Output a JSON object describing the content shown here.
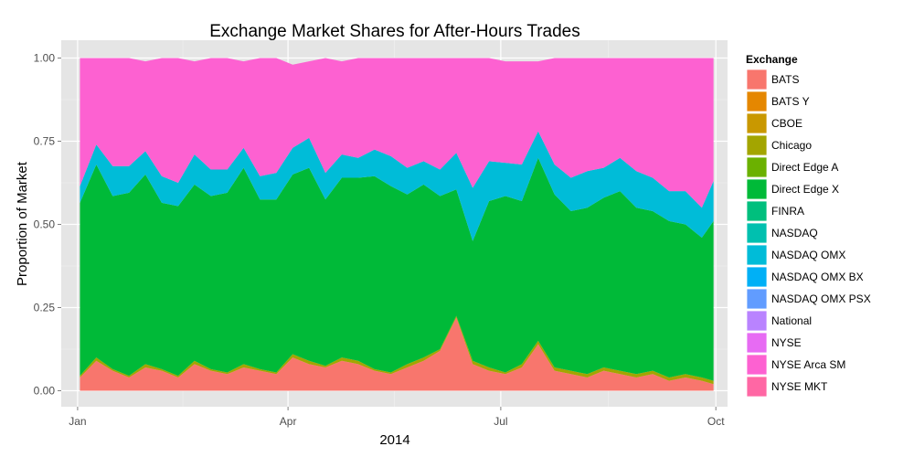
{
  "chart_data": {
    "type": "area",
    "stacked": true,
    "normalized": true,
    "title": "Exchange Market Shares for After-Hours Trades",
    "xlabel": "2014",
    "ylabel": "Proportion of Market",
    "ylim": [
      0,
      1
    ],
    "xlim": [
      "2013-12-25",
      "2014-10-06"
    ],
    "x_ticks": [
      {
        "date": "2014-01-01",
        "label": "Jan"
      },
      {
        "date": "2014-04-01",
        "label": "Apr"
      },
      {
        "date": "2014-07-01",
        "label": "Jul"
      },
      {
        "date": "2014-10-01",
        "label": "Oct"
      }
    ],
    "y_ticks": [
      {
        "value": 0.0,
        "label": "0.00"
      },
      {
        "value": 0.25,
        "label": "0.25"
      },
      {
        "value": 0.5,
        "label": "0.50"
      },
      {
        "value": 0.75,
        "label": "0.75"
      },
      {
        "value": 1.0,
        "label": "1.00"
      }
    ],
    "grid": true,
    "legend": {
      "title": "Exchange",
      "placement": "right",
      "entries": [
        {
          "label": "BATS",
          "color": "#F8766D"
        },
        {
          "label": "BATS Y",
          "color": "#E58700"
        },
        {
          "label": "CBOE",
          "color": "#C99800"
        },
        {
          "label": "Chicago",
          "color": "#A3A500"
        },
        {
          "label": "Direct Edge A",
          "color": "#6BB100"
        },
        {
          "label": "Direct Edge X",
          "color": "#00BA38"
        },
        {
          "label": "FINRA",
          "color": "#00BF7D"
        },
        {
          "label": "NASDAQ",
          "color": "#00C0AF"
        },
        {
          "label": "NASDAQ OMX",
          "color": "#00BCD8"
        },
        {
          "label": "NASDAQ OMX BX",
          "color": "#00B0F6"
        },
        {
          "label": "NASDAQ OMX PSX",
          "color": "#619CFF"
        },
        {
          "label": "National",
          "color": "#B983FF"
        },
        {
          "label": "NYSE",
          "color": "#E76BF3"
        },
        {
          "label": "NYSE Arca SM",
          "color": "#FD61D1"
        },
        {
          "label": "NYSE MKT",
          "color": "#FF67A4"
        }
      ]
    },
    "x": [
      "2014-01-02",
      "2014-01-09",
      "2014-01-16",
      "2014-01-23",
      "2014-01-30",
      "2014-02-06",
      "2014-02-13",
      "2014-02-20",
      "2014-02-27",
      "2014-03-06",
      "2014-03-13",
      "2014-03-20",
      "2014-03-27",
      "2014-04-03",
      "2014-04-10",
      "2014-04-17",
      "2014-04-24",
      "2014-05-01",
      "2014-05-08",
      "2014-05-15",
      "2014-05-22",
      "2014-05-29",
      "2014-06-05",
      "2014-06-12",
      "2014-06-19",
      "2014-06-26",
      "2014-07-03",
      "2014-07-10",
      "2014-07-17",
      "2014-07-24",
      "2014-07-31",
      "2014-08-07",
      "2014-08-14",
      "2014-08-21",
      "2014-08-28",
      "2014-09-04",
      "2014-09-11",
      "2014-09-18",
      "2014-09-25",
      "2014-09-30"
    ],
    "series": [
      {
        "name": "BATS",
        "color": "#F8766D",
        "values": [
          0.04,
          0.09,
          0.06,
          0.04,
          0.07,
          0.06,
          0.04,
          0.08,
          0.06,
          0.05,
          0.07,
          0.06,
          0.05,
          0.1,
          0.08,
          0.07,
          0.09,
          0.08,
          0.06,
          0.05,
          0.07,
          0.09,
          0.12,
          0.22,
          0.08,
          0.06,
          0.05,
          0.07,
          0.14,
          0.06,
          0.05,
          0.04,
          0.06,
          0.05,
          0.04,
          0.05,
          0.03,
          0.04,
          0.03,
          0.02
        ]
      },
      {
        "name": "Chicago",
        "color": "#A3A500",
        "values": [
          0.005,
          0.01,
          0.005,
          0.005,
          0.01,
          0.005,
          0.005,
          0.01,
          0.005,
          0.005,
          0.01,
          0.005,
          0.005,
          0.01,
          0.01,
          0.005,
          0.01,
          0.01,
          0.005,
          0.005,
          0.01,
          0.01,
          0.005,
          0.005,
          0.01,
          0.01,
          0.005,
          0.01,
          0.01,
          0.01,
          0.01,
          0.01,
          0.01,
          0.01,
          0.01,
          0.01,
          0.01,
          0.01,
          0.01,
          0.01
        ]
      },
      {
        "name": "Direct Edge X",
        "color": "#00BA38",
        "values": [
          0.52,
          0.58,
          0.52,
          0.55,
          0.57,
          0.5,
          0.51,
          0.53,
          0.52,
          0.54,
          0.59,
          0.51,
          0.52,
          0.54,
          0.58,
          0.5,
          0.54,
          0.55,
          0.58,
          0.56,
          0.51,
          0.52,
          0.46,
          0.38,
          0.36,
          0.5,
          0.53,
          0.49,
          0.55,
          0.52,
          0.48,
          0.5,
          0.51,
          0.54,
          0.5,
          0.48,
          0.47,
          0.45,
          0.42,
          0.48
        ]
      },
      {
        "name": "NASDAQ OMX",
        "color": "#00BCD8",
        "values": [
          0.05,
          0.06,
          0.09,
          0.08,
          0.07,
          0.08,
          0.07,
          0.09,
          0.08,
          0.07,
          0.06,
          0.07,
          0.08,
          0.08,
          0.09,
          0.08,
          0.07,
          0.06,
          0.08,
          0.09,
          0.08,
          0.07,
          0.08,
          0.11,
          0.16,
          0.12,
          0.1,
          0.11,
          0.08,
          0.09,
          0.1,
          0.11,
          0.09,
          0.1,
          0.11,
          0.1,
          0.09,
          0.1,
          0.09,
          0.12
        ]
      },
      {
        "name": "NYSE Arca SM",
        "color": "#FD61D1",
        "values": [
          0.385,
          0.26,
          0.325,
          0.325,
          0.27,
          0.355,
          0.375,
          0.28,
          0.335,
          0.335,
          0.26,
          0.355,
          0.345,
          0.25,
          0.23,
          0.345,
          0.28,
          0.3,
          0.275,
          0.295,
          0.33,
          0.31,
          0.335,
          0.285,
          0.39,
          0.31,
          0.305,
          0.31,
          0.21,
          0.32,
          0.36,
          0.34,
          0.33,
          0.3,
          0.34,
          0.36,
          0.4,
          0.4,
          0.45,
          0.37
        ]
      }
    ]
  }
}
